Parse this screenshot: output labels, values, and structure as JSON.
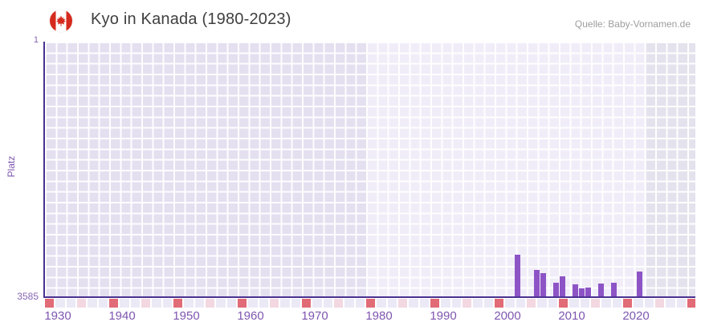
{
  "header": {
    "title": "Kyo in Kanada (1980-2023)",
    "source": "Quelle: Baby-Vornamen.de",
    "flag_icon": "canada-flag-icon"
  },
  "colors": {
    "bar": "#8d54c6",
    "axis_line": "#4a3191",
    "axis_text": "#7e56b0",
    "title_text": "#3f3f3f",
    "source_text": "#9d9d9d",
    "major_tick_tile": "#e16b76",
    "minor_tick_tile": "#f3d8e1",
    "plot_zone_left": "#e4e0f0",
    "plot_zone_highlight": "#f0edf8",
    "plot_zone_right": "#e4e2ed"
  },
  "chart_data": {
    "type": "bar",
    "title": "Kyo in Kanada (1980-2023)",
    "xlabel": "",
    "ylabel": "Platz",
    "y_axis": {
      "top_label": "1",
      "bottom_label": "3585",
      "min": 1,
      "max": 3585,
      "inverted": true
    },
    "x_range": [
      1928,
      2029
    ],
    "x_ticks": [
      "1930",
      "1940",
      "1950",
      "1960",
      "1970",
      "1980",
      "1990",
      "2000",
      "2010",
      "2020"
    ],
    "grid": true,
    "legend": false,
    "background_zones": [
      {
        "from": 1928,
        "to": 1978,
        "color": "#e4e0f0"
      },
      {
        "from": 1978,
        "to": 2021.6,
        "color": "#f0edf8"
      },
      {
        "from": 2021.6,
        "to": 2029.25,
        "color": "#e4e2ed"
      }
    ],
    "series": [
      {
        "name": "Platz",
        "color": "#8d54c6",
        "points": [
          {
            "year": 2001,
            "rank": 3000
          },
          {
            "year": 2004,
            "rank": 3217
          },
          {
            "year": 2005,
            "rank": 3254
          },
          {
            "year": 2007,
            "rank": 3397
          },
          {
            "year": 2008,
            "rank": 3306
          },
          {
            "year": 2010,
            "rank": 3420
          },
          {
            "year": 2011,
            "rank": 3469
          },
          {
            "year": 2012,
            "rank": 3461
          },
          {
            "year": 2014,
            "rank": 3405
          },
          {
            "year": 2016,
            "rank": 3389
          },
          {
            "year": 2020,
            "rank": 3239
          }
        ]
      }
    ]
  }
}
